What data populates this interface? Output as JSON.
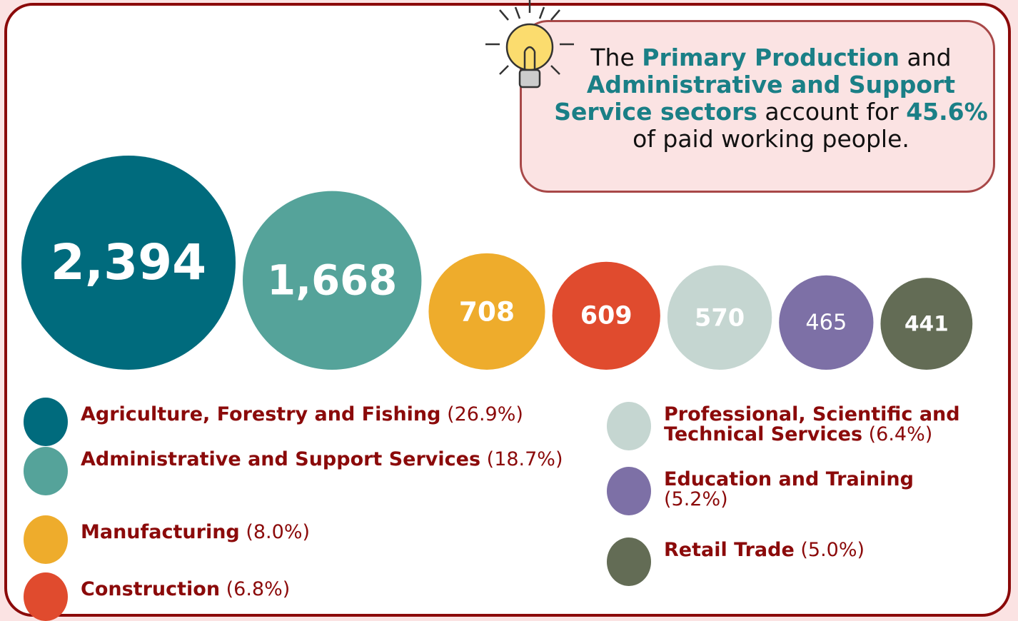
{
  "chart_data": {
    "type": "bubble",
    "categories": [
      "Agriculture, Forestry and Fishing",
      "Administrative and Support Services",
      "Manufacturing",
      "Construction",
      "Professional, Scientific and Technical Services",
      "Education and Training",
      "Retail Trade"
    ],
    "values": [
      2394,
      1668,
      708,
      609,
      570,
      465,
      441
    ],
    "value_labels": [
      "2,394",
      "1,668",
      "708",
      "609",
      "570",
      "465",
      "441"
    ],
    "share_labels": [
      "(26.9%)",
      "(18.7%)",
      "(8.0%)",
      "(6.8%)",
      "(6.4%)",
      "(5.2%)",
      "(5.0%)"
    ],
    "colors": [
      "#006b7d",
      "#55a39a",
      "#eeac2c",
      "#e04b2e",
      "#c5d6d1",
      "#7d70a6",
      "#636c55"
    ],
    "callout": [
      {
        "text": "The "
      },
      {
        "text": "Primary Production",
        "highlight": true
      },
      {
        "text": " and "
      },
      {
        "text": "Administrative and Support Service sectors",
        "highlight": true
      },
      {
        "text": " account for "
      },
      {
        "text": "45.6%",
        "highlight": true
      },
      {
        "text": " of paid working people."
      }
    ]
  }
}
